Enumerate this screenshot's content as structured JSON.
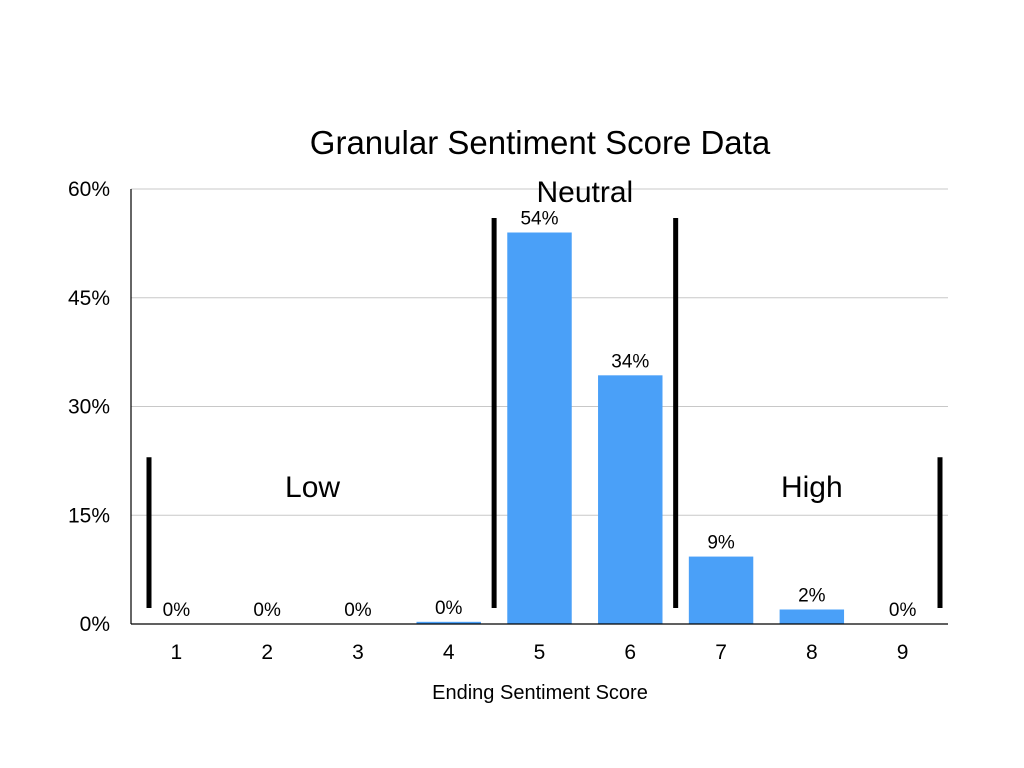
{
  "chart_data": {
    "type": "bar",
    "title": "Granular Sentiment Score Data",
    "xlabel": "Ending Sentiment Score",
    "ylabel": "",
    "categories": [
      "1",
      "2",
      "3",
      "4",
      "5",
      "6",
      "7",
      "8",
      "9"
    ],
    "values": [
      0,
      0,
      0,
      0.3,
      54,
      34.3,
      9.3,
      2,
      0
    ],
    "data_labels": [
      "0%",
      "0%",
      "0%",
      "0%",
      "54%",
      "34%",
      "9%",
      "2%",
      "0%"
    ],
    "ylim": [
      0,
      60
    ],
    "yticks": [
      0,
      15,
      30,
      45,
      60
    ],
    "ytick_labels": [
      "0%",
      "15%",
      "30%",
      "45%",
      "60%"
    ],
    "grid": true,
    "bar_color": "#4aa0f8",
    "regions": [
      {
        "label": "Low",
        "from": 1,
        "to": 4
      },
      {
        "label": "Neutral",
        "from": 5,
        "to": 6
      },
      {
        "label": "High",
        "from": 7,
        "to": 9
      }
    ],
    "dividers": [
      {
        "after": 0,
        "top": 23
      },
      {
        "after": 4,
        "top": 56
      },
      {
        "after": 6,
        "top": 56
      },
      {
        "after": 9,
        "top": 23
      }
    ]
  }
}
